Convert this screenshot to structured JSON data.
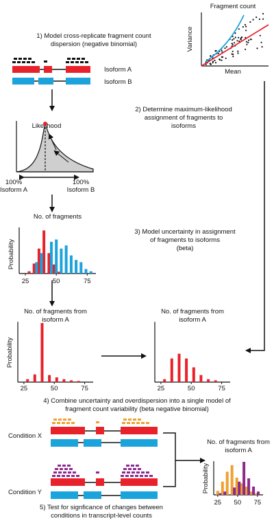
{
  "colors": {
    "red": "#e8222b",
    "blue": "#1ba3dc",
    "orange": "#f0a030",
    "purple": "#8c2a8c",
    "black": "#111111",
    "gray": "#cfcfcf"
  },
  "steps": {
    "s1": [
      "1) Model cross-replicate fragment count",
      "dispersion (negative binomial)"
    ],
    "s2": [
      "2) Determine maximum-likelihood",
      "assignment of fragments to",
      "isoforms"
    ],
    "s3": [
      "3) Model uncertainty in assignment",
      "of fragments to isoforms",
      "(beta)"
    ],
    "s4": [
      "4) Combine uncertainty and overdispersion into a single model of",
      "fragment count variability (beta negative binomial)"
    ],
    "s5": [
      "5) Test for signficance of changes between",
      "conditions in transcript-level counts"
    ]
  },
  "isoforms": {
    "a": "Isoform A",
    "b": "Isoform B"
  },
  "conditions": {
    "x": "Condition X",
    "y": "Condition Y"
  },
  "scatter": {
    "title": "Fragment count",
    "xlabel": "Mean",
    "ylabel": "Variance"
  },
  "likelihood": {
    "title": "Likelihood",
    "left": [
      "100%",
      "Isoform A"
    ],
    "right": [
      "100%",
      "Isoform B"
    ]
  },
  "chart_data": [
    {
      "type": "bar",
      "title": "No. of fragments",
      "ylabel": "Probability",
      "xticks": [
        25,
        50,
        75
      ],
      "series": [
        {
          "color": "red",
          "x": [
            40,
            36,
            44,
            32,
            48,
            28,
            52
          ],
          "values": [
            0.95,
            0.55,
            0.45,
            0.22,
            0.2,
            0.05,
            0.04
          ]
        },
        {
          "color": "blue",
          "x": [
            34,
            38,
            46,
            50,
            54,
            58,
            62,
            66,
            70,
            74,
            78
          ],
          "values": [
            0.25,
            0.45,
            0.7,
            0.75,
            0.55,
            0.62,
            0.4,
            0.3,
            0.25,
            0.1,
            0.05
          ]
        }
      ]
    },
    {
      "type": "bar",
      "title": [
        "No. of fragments from",
        "isoform A"
      ],
      "ylabel": "Probability",
      "xticks": [
        25,
        50,
        75
      ],
      "series": [
        {
          "color": "red",
          "x": [
            28,
            34,
            40,
            46,
            52,
            58,
            64,
            70
          ],
          "values": [
            0.05,
            0.13,
            1.0,
            0.12,
            0.08,
            0.05,
            0.03,
            0.02
          ]
        }
      ]
    },
    {
      "type": "bar",
      "title": [
        "No. of fragments from",
        "isoform A"
      ],
      "xticks": [
        25,
        50,
        75
      ],
      "series": [
        {
          "color": "red",
          "x": [
            28,
            34,
            40,
            46,
            52,
            58,
            64,
            70
          ],
          "values": [
            0.05,
            0.4,
            0.48,
            0.4,
            0.25,
            0.12,
            0.05,
            0.03
          ]
        }
      ]
    },
    {
      "type": "bar",
      "title": [
        "No. of fragments from",
        "isoform A"
      ],
      "ylabel": "Probability",
      "xticks": [
        25,
        50,
        75
      ],
      "series": [
        {
          "color": "orange",
          "x": [
            25,
            31,
            37,
            43,
            49,
            55,
            61,
            67,
            73
          ],
          "values": [
            0.12,
            0.4,
            0.7,
            0.9,
            0.52,
            0.35,
            0.25,
            0.1,
            0.05
          ]
        },
        {
          "color": "purple",
          "x": [
            28,
            34,
            46,
            52,
            58,
            64,
            70,
            76
          ],
          "values": [
            0.05,
            0.1,
            0.22,
            0.4,
            1.0,
            0.5,
            0.25,
            0.1
          ]
        }
      ]
    }
  ]
}
